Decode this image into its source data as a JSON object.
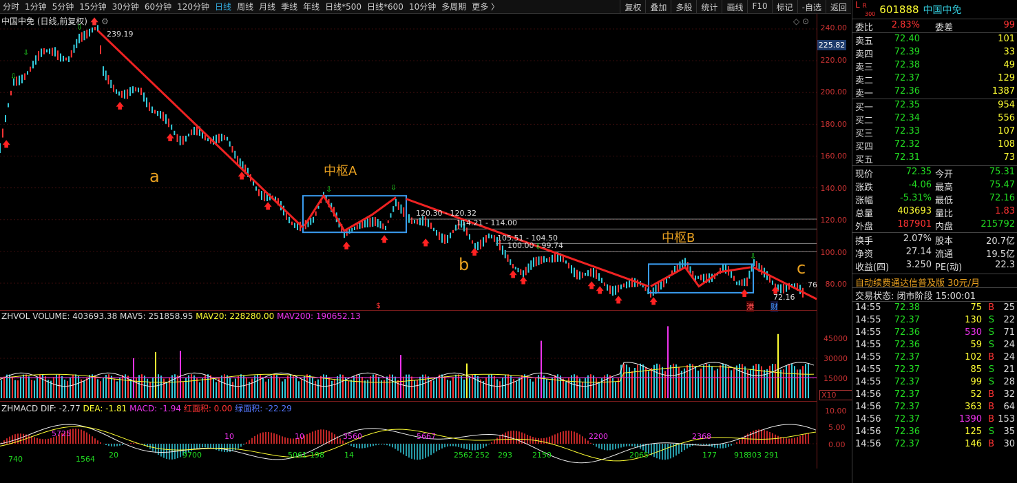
{
  "toolbar": {
    "left_items": [
      "分时",
      "1分钟",
      "5分钟",
      "15分钟",
      "30分钟",
      "60分钟",
      "120分钟",
      "日线",
      "周线",
      "月线",
      "季线",
      "年线",
      "日线*500",
      "日线*600",
      "10分钟",
      "多周期",
      "更多 〉"
    ],
    "active_index": 7,
    "right_items": [
      "复权",
      "叠加",
      "多股",
      "统计",
      "画线",
      "F10",
      "标记",
      "-自选",
      "返回"
    ]
  },
  "chart": {
    "title": "中国中免 (日线,前复权)",
    "high_label": "239.19",
    "current_price": "225.82",
    "axis_labels": [
      "240.00",
      "220.00",
      "200.00",
      "180.00",
      "160.00",
      "140.00",
      "120.00",
      "100.00",
      "80.00"
    ],
    "annotations": {
      "a": "a",
      "b": "b",
      "c": "c",
      "zhongshu_a": "中枢A",
      "zhongshu_b": "中枢B"
    },
    "levels": [
      "120.30 - 120.32",
      "114.21 - 114.00",
      "105.51 - 104.50",
      "100.00 - 99.74"
    ],
    "low_label": "72.16",
    "right_edge_label": "76",
    "markers": {
      "gang": "港",
      "cai": "财",
      "dollar": "$"
    }
  },
  "volume": {
    "name": "ZHVOL",
    "volume": "VOLUME: 403693.38",
    "mav5": "MAV5: 251858.95",
    "mav20": "MAV20: 228280.00",
    "mav200": "MAV200: 190652.13",
    "axis": [
      "45000",
      "30000",
      "15000"
    ],
    "unit": "X10"
  },
  "macd": {
    "name": "ZHMACD",
    "dif": "DIF: -2.77",
    "dea": "DEA: -1.81",
    "macd": "MACD: -1.94",
    "red_area": "红面积: 0.00",
    "green_area": "绿面积: -22.29",
    "axis": [
      "10.00",
      "5.00",
      "0.00"
    ],
    "red_labels": [
      "5725",
      "3560",
      "5667",
      "10",
      "10",
      "2200",
      "2368"
    ],
    "green_labels": [
      "740",
      "1564",
      "20",
      "9700",
      "5061",
      "198",
      "14",
      "2562",
      "252",
      "293",
      "2150",
      "2065",
      "177",
      "918",
      "303",
      "291"
    ]
  },
  "quote": {
    "code": "601888",
    "name": "中国中免",
    "badge_top": "L",
    "badge_r": "R",
    "badge_300": "300",
    "weibi_label": "委比",
    "weibi": "2.83%",
    "weicha_label": "委差",
    "weicha": "99",
    "asks": [
      {
        "label": "卖五",
        "price": "72.40",
        "vol": "101"
      },
      {
        "label": "卖四",
        "price": "72.39",
        "vol": "33"
      },
      {
        "label": "卖三",
        "price": "72.38",
        "vol": "49"
      },
      {
        "label": "卖二",
        "price": "72.37",
        "vol": "129"
      },
      {
        "label": "卖一",
        "price": "72.36",
        "vol": "1387"
      }
    ],
    "bids": [
      {
        "label": "买一",
        "price": "72.35",
        "vol": "954"
      },
      {
        "label": "买二",
        "price": "72.34",
        "vol": "556"
      },
      {
        "label": "买三",
        "price": "72.33",
        "vol": "107"
      },
      {
        "label": "买四",
        "price": "72.32",
        "vol": "108"
      },
      {
        "label": "买五",
        "price": "72.31",
        "vol": "73"
      }
    ],
    "stats": [
      {
        "l1": "现价",
        "v1": "72.35",
        "c1": "grn",
        "l2": "今开",
        "v2": "75.31",
        "c2": "grn"
      },
      {
        "l1": "涨跌",
        "v1": "-4.06",
        "c1": "grn",
        "l2": "最高",
        "v2": "75.47",
        "c2": "grn"
      },
      {
        "l1": "涨幅",
        "v1": "-5.31%",
        "c1": "grn",
        "l2": "最低",
        "v2": "72.16",
        "c2": "grn"
      },
      {
        "l1": "总量",
        "v1": "403693",
        "c1": "yel",
        "l2": "量比",
        "v2": "1.83",
        "c2": "red"
      },
      {
        "l1": "外盘",
        "v1": "187901",
        "c1": "red",
        "l2": "内盘",
        "v2": "215792",
        "c2": "grn"
      }
    ],
    "stats2": [
      {
        "l1": "换手",
        "v1": "2.07%",
        "l2": "股本",
        "v2": "20.7亿"
      },
      {
        "l1": "净资",
        "v1": "27.14",
        "l2": "流通",
        "v2": "19.5亿"
      },
      {
        "l1": "收益(四)",
        "v1": "3.250",
        "l2": "PE(动)",
        "v2": "22.3"
      }
    ],
    "promo": "自动续费通达信普及版  30元/月",
    "status": "交易状态: 闭市阶段 15:00:01",
    "ticks": [
      {
        "t": "14:55",
        "p": "72.38",
        "v": "75",
        "s": "B",
        "n": "25"
      },
      {
        "t": "14:55",
        "p": "72.37",
        "v": "130",
        "s": "S",
        "n": "22"
      },
      {
        "t": "14:55",
        "p": "72.36",
        "v": "530",
        "s": "S",
        "n": "71"
      },
      {
        "t": "14:55",
        "p": "72.36",
        "v": "59",
        "s": "S",
        "n": "24"
      },
      {
        "t": "14:55",
        "p": "72.37",
        "v": "102",
        "s": "B",
        "n": "24"
      },
      {
        "t": "14:55",
        "p": "72.37",
        "v": "85",
        "s": "S",
        "n": "21"
      },
      {
        "t": "14:55",
        "p": "72.37",
        "v": "99",
        "s": "S",
        "n": "28"
      },
      {
        "t": "14:56",
        "p": "72.37",
        "v": "52",
        "s": "B",
        "n": "32"
      },
      {
        "t": "14:56",
        "p": "72.37",
        "v": "363",
        "s": "B",
        "n": "64"
      },
      {
        "t": "14:56",
        "p": "72.37",
        "v": "1390",
        "s": "B",
        "n": "153"
      },
      {
        "t": "14:56",
        "p": "72.36",
        "v": "125",
        "s": "S",
        "n": "35"
      },
      {
        "t": "14:56",
        "p": "72.37",
        "v": "146",
        "s": "B",
        "n": "30"
      }
    ]
  }
}
